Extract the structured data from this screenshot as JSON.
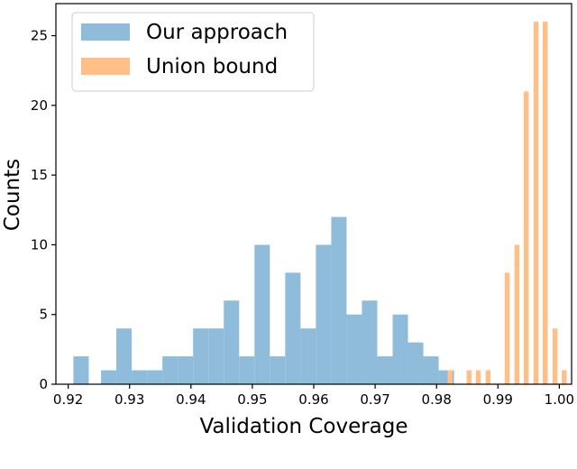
{
  "chart_data": {
    "type": "bar",
    "xlabel": "Validation Coverage",
    "ylabel": "Counts",
    "xlim": [
      0.918,
      1.002
    ],
    "ylim": [
      0,
      27.3
    ],
    "x_ticks": [
      0.92,
      0.93,
      0.94,
      0.95,
      0.96,
      0.97,
      0.98,
      0.99,
      1.0
    ],
    "x_tick_labels": [
      "0.92",
      "0.93",
      "0.94",
      "0.95",
      "0.96",
      "0.97",
      "0.98",
      "0.99",
      "1.00"
    ],
    "y_ticks": [
      0,
      5,
      10,
      15,
      20,
      25
    ],
    "y_tick_labels": [
      "0",
      "5",
      "10",
      "15",
      "20",
      "25"
    ],
    "grid": false,
    "legend_position": "top-left",
    "series": [
      {
        "name": "Our approach",
        "color": "#8fbcdb",
        "bar_width": 0.0025,
        "bins": [
          {
            "x": 0.9221,
            "count": 2
          },
          {
            "x": 0.9266,
            "count": 1
          },
          {
            "x": 0.9291,
            "count": 4
          },
          {
            "x": 0.9316,
            "count": 1
          },
          {
            "x": 0.9341,
            "count": 1
          },
          {
            "x": 0.9366,
            "count": 2
          },
          {
            "x": 0.9391,
            "count": 2
          },
          {
            "x": 0.9416,
            "count": 4
          },
          {
            "x": 0.9441,
            "count": 4
          },
          {
            "x": 0.9466,
            "count": 6
          },
          {
            "x": 0.9491,
            "count": 2
          },
          {
            "x": 0.9516,
            "count": 10
          },
          {
            "x": 0.9541,
            "count": 2
          },
          {
            "x": 0.9566,
            "count": 8
          },
          {
            "x": 0.9591,
            "count": 4
          },
          {
            "x": 0.9616,
            "count": 10
          },
          {
            "x": 0.9641,
            "count": 12
          },
          {
            "x": 0.9666,
            "count": 5
          },
          {
            "x": 0.9691,
            "count": 6
          },
          {
            "x": 0.9716,
            "count": 2
          },
          {
            "x": 0.9741,
            "count": 5
          },
          {
            "x": 0.9766,
            "count": 3
          },
          {
            "x": 0.9791,
            "count": 2
          },
          {
            "x": 0.9816,
            "count": 1
          }
        ]
      },
      {
        "name": "Union bound",
        "color": "#ffbf86",
        "bar_width": 0.0008,
        "bins": [
          {
            "x": 0.9822,
            "count": 1
          },
          {
            "x": 0.9853,
            "count": 1
          },
          {
            "x": 0.9868,
            "count": 1
          },
          {
            "x": 0.9884,
            "count": 1
          },
          {
            "x": 0.9915,
            "count": 8
          },
          {
            "x": 0.9931,
            "count": 10
          },
          {
            "x": 0.9946,
            "count": 21
          },
          {
            "x": 0.9962,
            "count": 26
          },
          {
            "x": 0.9977,
            "count": 26
          },
          {
            "x": 0.9993,
            "count": 4
          },
          {
            "x": 1.0008,
            "count": 1
          }
        ]
      }
    ]
  }
}
